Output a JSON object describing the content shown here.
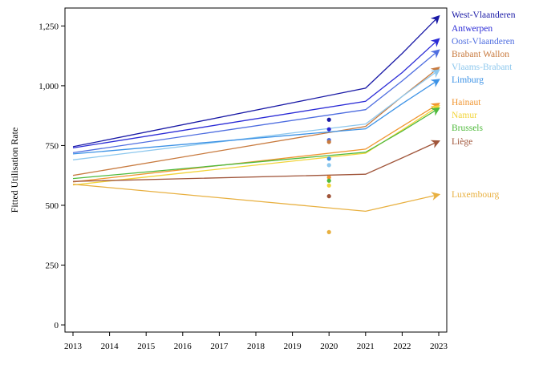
{
  "chart_data": {
    "type": "line",
    "title": "",
    "xlabel": "",
    "ylabel": "Fitted Utilisation Rate",
    "xlim": [
      2013,
      2023
    ],
    "ylim": [
      -30,
      1325
    ],
    "xticks": [
      2013,
      2014,
      2015,
      2016,
      2017,
      2018,
      2019,
      2020,
      2021,
      2022,
      2023
    ],
    "yticks": [
      0,
      250,
      500,
      750,
      1000,
      1250
    ],
    "ytick_labels": [
      "0",
      "250",
      "500",
      "750",
      "1,000",
      "1,250"
    ],
    "grid": false,
    "legend_position": "right, labels at line ends",
    "series": [
      {
        "name": "West-Vlaanderen",
        "color": "#1a1aa6",
        "x": [
          2013,
          2021,
          2022,
          2023
        ],
        "values": [
          745,
          990,
          1135,
          1290
        ],
        "point_2020": 858
      },
      {
        "name": "Antwerpen",
        "color": "#2b2bd6",
        "x": [
          2013,
          2021,
          2022,
          2023
        ],
        "values": [
          740,
          935,
          1055,
          1195
        ],
        "point_2020": 818
      },
      {
        "name": "Oost-Vlaanderen",
        "color": "#4f6ee0",
        "x": [
          2013,
          2021,
          2022,
          2023
        ],
        "values": [
          720,
          900,
          1020,
          1148
        ],
        "point_2020": 773
      },
      {
        "name": "Brabant Wallon",
        "color": "#c87a3e",
        "x": [
          2013,
          2021,
          2022,
          2023
        ],
        "values": [
          625,
          830,
          955,
          1075
        ],
        "point_2020": 765
      },
      {
        "name": "Vlaams-Brabant",
        "color": "#8ec8ee",
        "x": [
          2013,
          2021,
          2022,
          2023
        ],
        "values": [
          690,
          840,
          955,
          1065
        ],
        "point_2020": 668
      },
      {
        "name": "Limburg",
        "color": "#3c92e6",
        "x": [
          2013,
          2021,
          2022,
          2023
        ],
        "values": [
          715,
          820,
          925,
          1025
        ],
        "point_2020": 695
      },
      {
        "name": "Hainaut",
        "color": "#f09530",
        "x": [
          2013,
          2021,
          2022,
          2023
        ],
        "values": [
          598,
          735,
          830,
          925
        ],
        "point_2020": 617
      },
      {
        "name": "Namur",
        "color": "#f2d43a",
        "x": [
          2013,
          2021,
          2022,
          2023
        ],
        "values": [
          585,
          718,
          815,
          915
        ],
        "point_2020": 583
      },
      {
        "name": "Brussels",
        "color": "#4fba3c",
        "x": [
          2013,
          2021,
          2022,
          2023
        ],
        "values": [
          612,
          722,
          810,
          905
        ],
        "point_2020": 603
      },
      {
        "name": "Liège",
        "color": "#a0553a",
        "x": [
          2013,
          2021,
          2022,
          2023
        ],
        "values": [
          600,
          630,
          698,
          768
        ],
        "point_2020": 538
      },
      {
        "name": "Luxembourg",
        "color": "#e8b040",
        "x": [
          2013,
          2021,
          2022,
          2023
        ],
        "values": [
          588,
          475,
          510,
          545
        ],
        "point_2020": 388
      }
    ]
  }
}
